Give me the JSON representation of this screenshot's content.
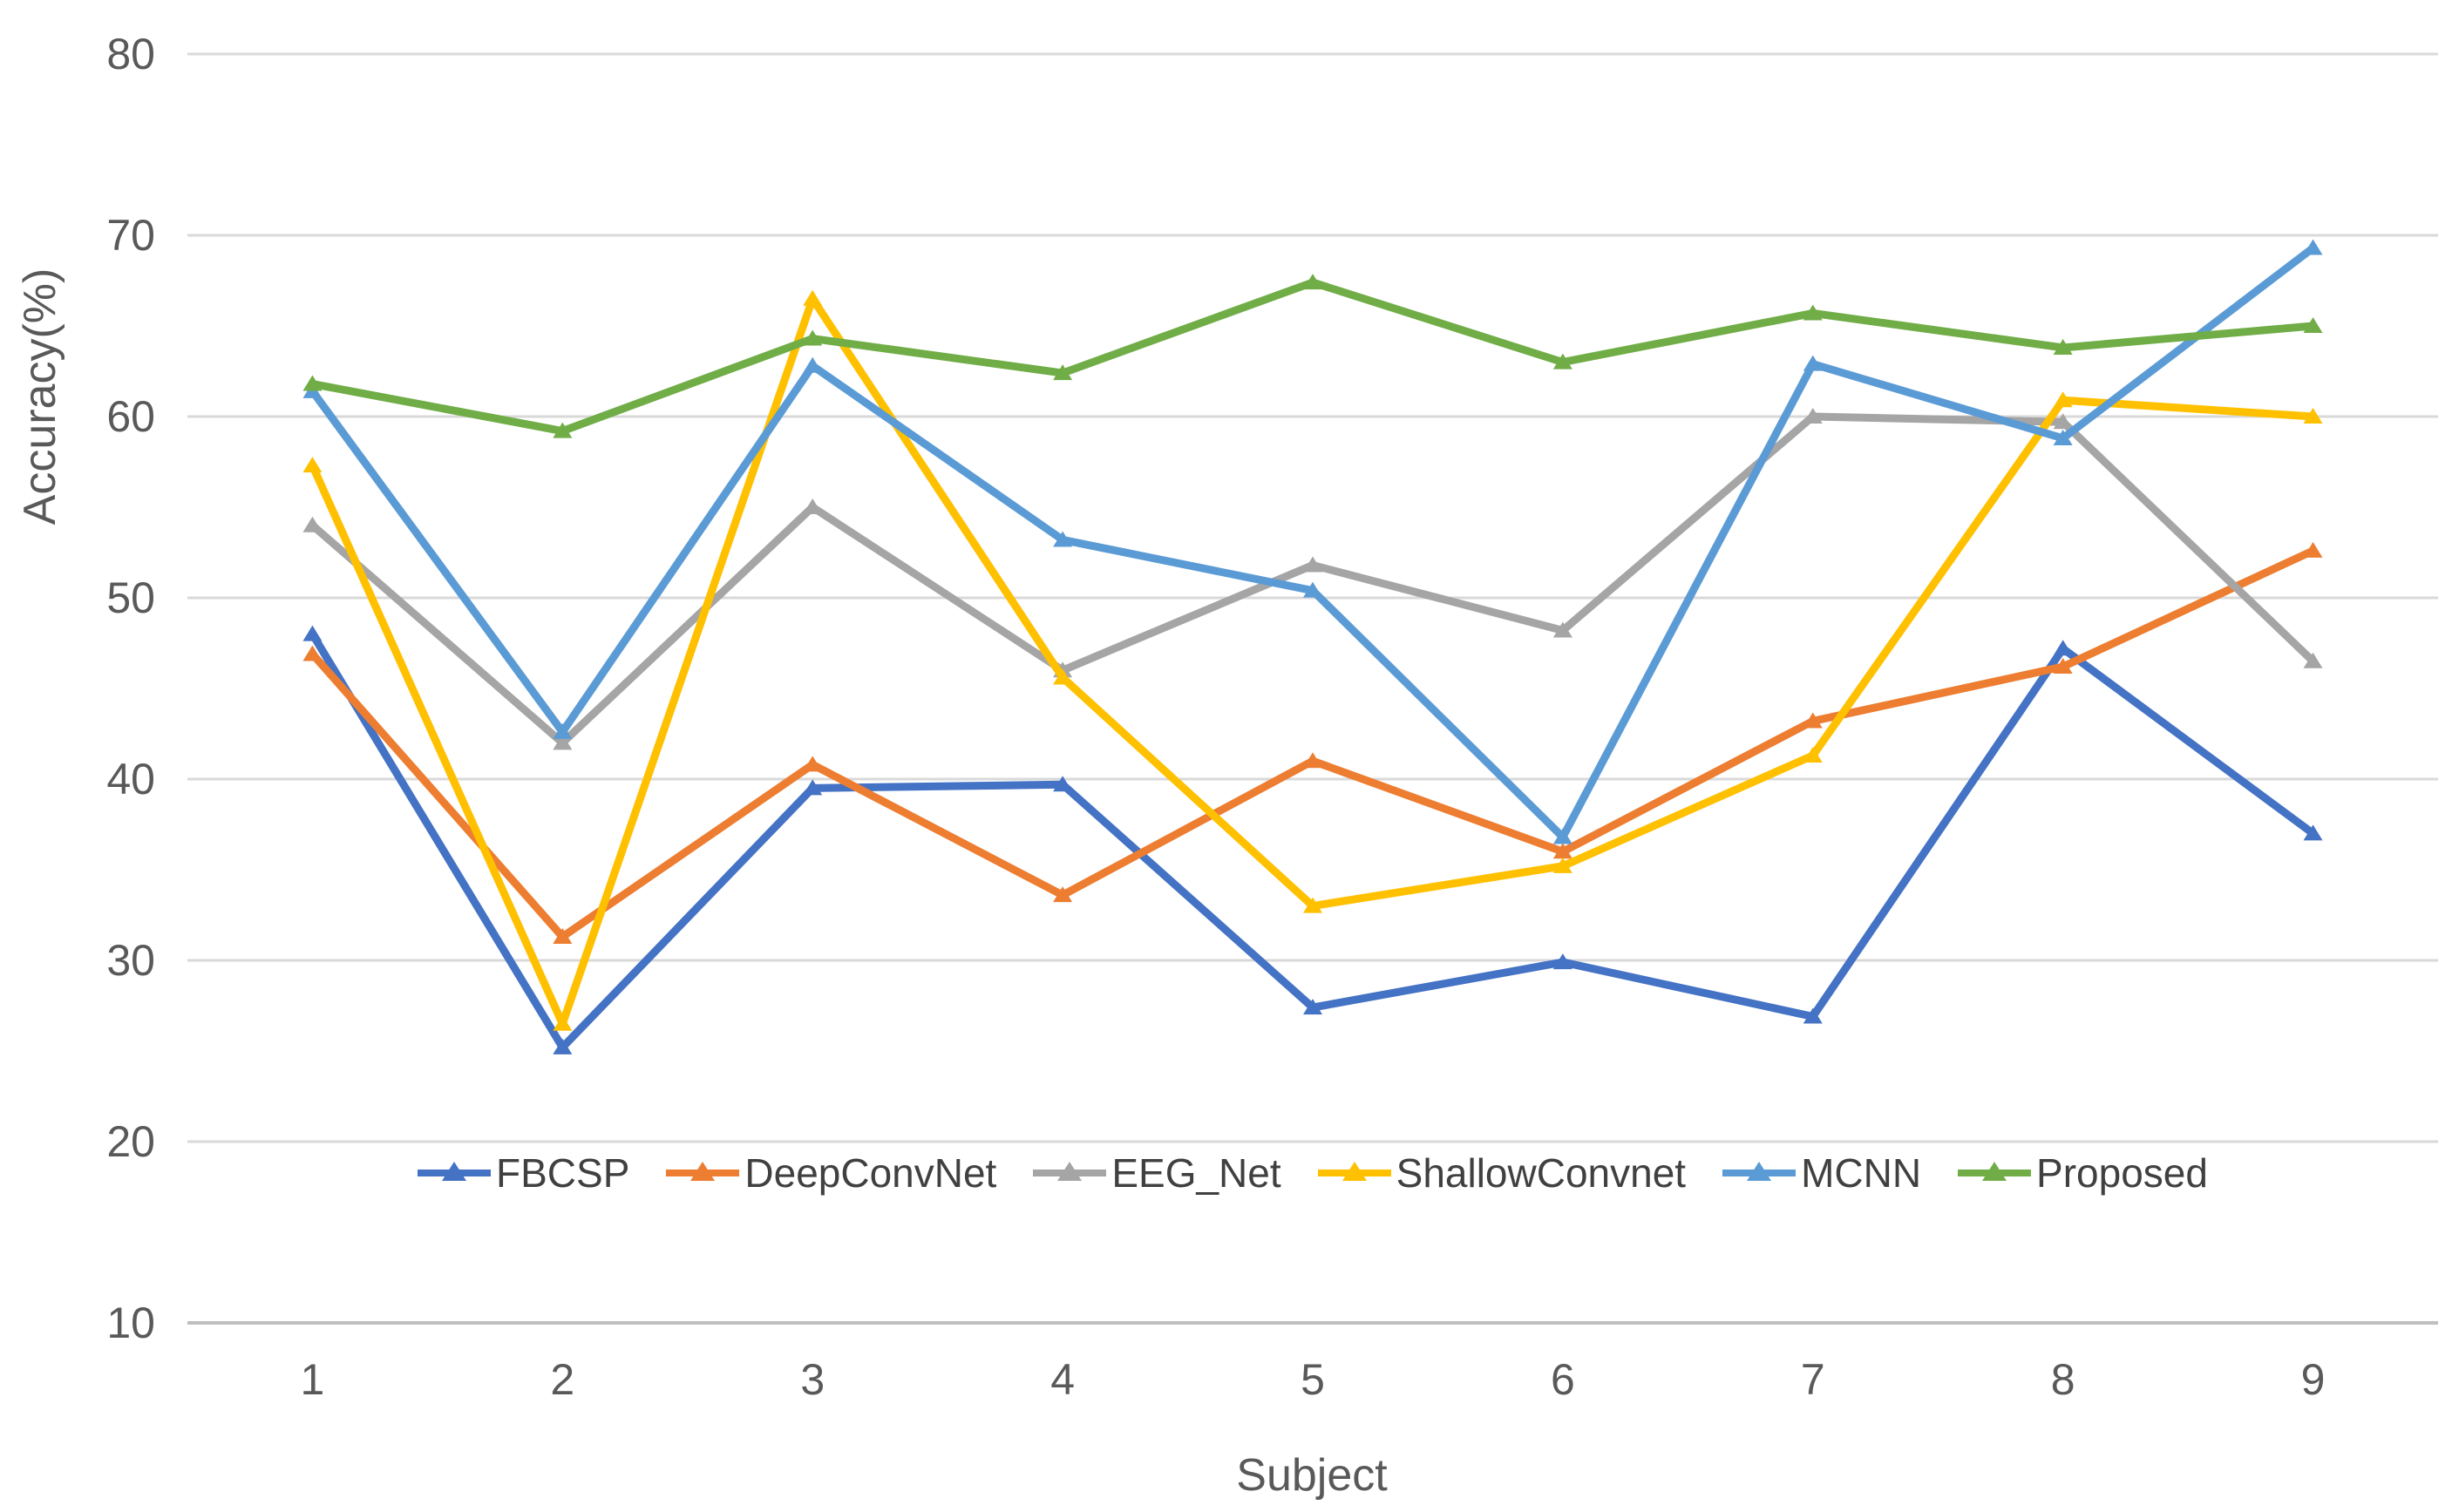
{
  "chart_data": {
    "type": "line",
    "title": "",
    "xlabel": "Subject",
    "ylabel": "Accuracy(%)",
    "categories": [
      "1",
      "2",
      "3",
      "4",
      "5",
      "6",
      "7",
      "8",
      "9"
    ],
    "ylim": [
      10,
      80
    ],
    "y_ticks": [
      10,
      20,
      30,
      40,
      50,
      60,
      70,
      80
    ],
    "grid": true,
    "legend_position": "inside-bottom",
    "marker_shape": "triangle",
    "colors": {
      "grid_line": "#d9d9d9",
      "axis_line": "#bfbfbf",
      "tick_text": "#595959"
    },
    "series": [
      {
        "name": "FBCSP",
        "color": "#4472c4",
        "values": [
          48.0,
          25.2,
          39.5,
          39.7,
          27.4,
          29.9,
          26.9,
          47.2,
          37.0
        ]
      },
      {
        "name": "DeepConvNet",
        "color": "#ed7d31",
        "values": [
          46.9,
          31.3,
          40.8,
          33.6,
          41.0,
          36.0,
          43.2,
          46.2,
          52.6
        ]
      },
      {
        "name": "EEG_Net",
        "color": "#a5a5a5",
        "values": [
          54.0,
          42.0,
          55.0,
          46.0,
          51.8,
          48.2,
          60.0,
          59.7,
          46.5
        ]
      },
      {
        "name": "ShallowConvnet",
        "color": "#ffc000",
        "values": [
          57.3,
          26.5,
          66.5,
          45.6,
          33.0,
          35.2,
          41.3,
          60.9,
          60.0
        ]
      },
      {
        "name": "MCNN",
        "color": "#5b9bd5",
        "values": [
          61.4,
          42.6,
          62.8,
          53.2,
          50.4,
          36.8,
          62.9,
          58.8,
          69.3
        ]
      },
      {
        "name": "Proposed",
        "color": "#70ad47",
        "values": [
          61.8,
          59.2,
          64.3,
          62.4,
          67.4,
          63.0,
          65.7,
          63.8,
          65.0
        ]
      }
    ]
  }
}
